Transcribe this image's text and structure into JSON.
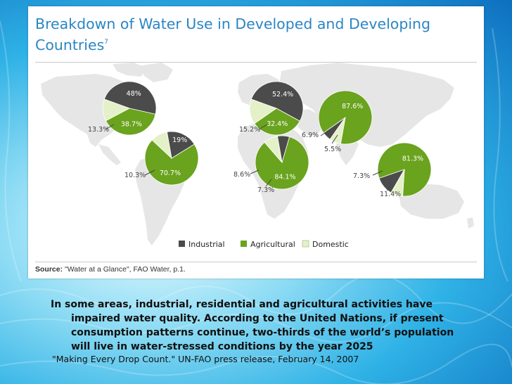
{
  "slide": {
    "title_main": "Breakdown of Water Use in Developed and Developing Countries",
    "title_sup": "7",
    "source_label": "Source:",
    "source_text": " \"Water at a Glance\", FAO Water, p.1.",
    "note_lines": [
      "In some areas, industrial, residential and agricultural activities have",
      "impaired water quality. According to the United Nations, if present",
      "consumption patterns continue, two-thirds of the world’s population",
      "will live in water-stressed conditions by the year 2025"
    ],
    "citation": "\"Making Every Drop Count.\" UN-FAO press release, February 14, 2007"
  },
  "chart_data": {
    "type": "pie",
    "colors": {
      "Industrial": "#4b4b4b",
      "Agricultural": "#6aa31e",
      "Domestic": "#e4f1c8"
    },
    "legend": [
      "Industrial",
      "Agricultural",
      "Domestic"
    ],
    "legend_position": "bottom",
    "pies": [
      {
        "values": {
          "Industrial": 48,
          "Agricultural": 38.7,
          "Domestic": 13.3
        },
        "labels": {
          "Industrial": "48%",
          "Agricultural": "38.7%",
          "Domestic": "13.3%"
        }
      },
      {
        "values": {
          "Industrial": 19,
          "Agricultural": 70.7,
          "Domestic": 10.3
        },
        "labels": {
          "Industrial": "19%",
          "Agricultural": "70.7%",
          "Domestic": "10.3%"
        }
      },
      {
        "values": {
          "Industrial": 52.4,
          "Agricultural": 32.4,
          "Domestic": 15.2
        },
        "labels": {
          "Industrial": "52.4%",
          "Agricultural": "32.4%",
          "Domestic": "15.2%"
        }
      },
      {
        "values": {
          "Industrial": 7.3,
          "Agricultural": 84.1,
          "Domestic": 8.6
        },
        "labels": {
          "Industrial": "7.3%",
          "Agricultural": "84.1%",
          "Domestic": "8.6%"
        }
      },
      {
        "values": {
          "Industrial": 5.5,
          "Agricultural": 87.6,
          "Domestic": 6.9
        },
        "labels": {
          "Industrial": "5.5%",
          "Agricultural": "87.6%",
          "Domestic": "6.9%"
        }
      },
      {
        "values": {
          "Industrial": 11.4,
          "Agricultural": 81.3,
          "Domestic": 7.3
        },
        "labels": {
          "Industrial": "11.4%",
          "Agricultural": "81.3%",
          "Domestic": "7.3%"
        }
      }
    ]
  }
}
